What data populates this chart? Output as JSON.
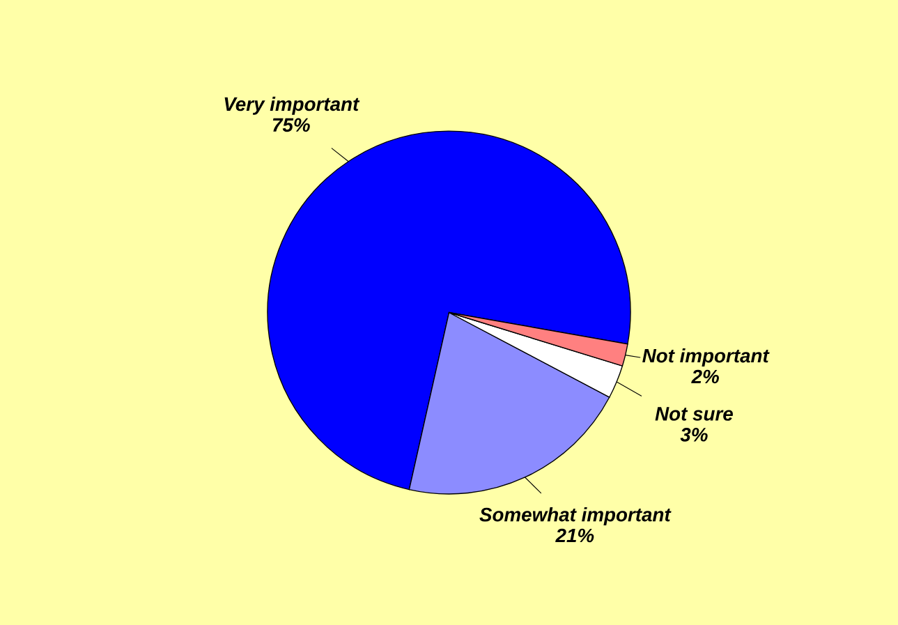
{
  "chart_data": {
    "type": "pie",
    "categories": [
      "Very important",
      "Somewhat important",
      "Not sure",
      "Not important"
    ],
    "values": [
      75,
      21,
      3,
      2
    ],
    "colors": [
      "#0000ff",
      "#8c8cff",
      "#ffffff",
      "#ff8080"
    ],
    "value_labels": [
      "75%",
      "21%",
      "3%",
      "2%"
    ],
    "legend": false
  }
}
